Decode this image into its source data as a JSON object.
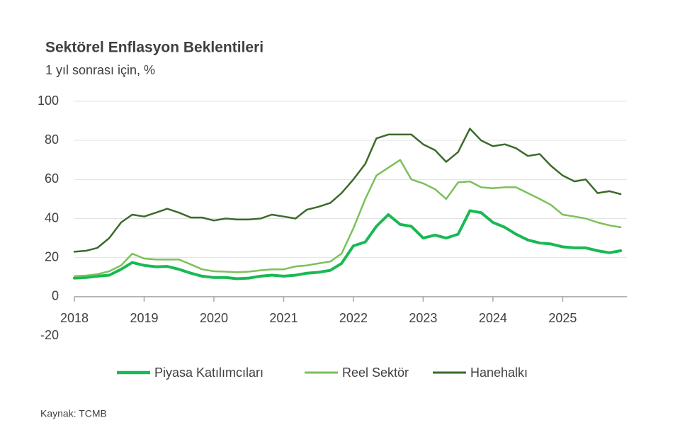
{
  "chart_data": {
    "type": "line",
    "title": "Sektörel Enflasyon Beklentileri",
    "subtitle": "1 yıl sonrası için, %",
    "source": "Kaynak: TCMB",
    "x": [
      2018,
      2018.17,
      2018.33,
      2018.5,
      2018.67,
      2018.83,
      2019,
      2019.17,
      2019.33,
      2019.5,
      2019.67,
      2019.83,
      2020,
      2020.17,
      2020.33,
      2020.5,
      2020.67,
      2020.83,
      2021,
      2021.17,
      2021.33,
      2021.5,
      2021.67,
      2021.83,
      2022,
      2022.17,
      2022.33,
      2022.5,
      2022.67,
      2022.83,
      2023,
      2023.17,
      2023.33,
      2023.5,
      2023.67,
      2023.83,
      2024,
      2024.17,
      2024.33,
      2024.5,
      2024.67,
      2024.83,
      2025,
      2025.17,
      2025.33,
      2025.5,
      2025.67,
      2025.83
    ],
    "series": [
      {
        "name": "Piyasa Katılımcıları",
        "color": "#19b954",
        "width": 4,
        "values": [
          9.5,
          9.8,
          10.5,
          11,
          14,
          17.5,
          16,
          15.3,
          15.5,
          14,
          12,
          10.5,
          9.8,
          9.8,
          9.2,
          9.5,
          10.5,
          11,
          10.5,
          11,
          12,
          12.5,
          13.5,
          17,
          26,
          28,
          36,
          42,
          37,
          36,
          30,
          31.5,
          30,
          32,
          44,
          43,
          38,
          35.5,
          32,
          29,
          27.5,
          27,
          25.5,
          25,
          25,
          23.5,
          22.5,
          23.5
        ]
      },
      {
        "name": "Reel Sektör",
        "color": "#7cc05a",
        "width": 2.5,
        "values": [
          10.5,
          10.8,
          11.5,
          13,
          16,
          22,
          19.5,
          19,
          19,
          19,
          16.5,
          14,
          13,
          12.8,
          12.5,
          12.8,
          13.5,
          14,
          14,
          15.5,
          16,
          17,
          18,
          22,
          35,
          50,
          62,
          66,
          70,
          60,
          58,
          55,
          50,
          58.5,
          59,
          56,
          55.5,
          56,
          56,
          53,
          50,
          47,
          42,
          41,
          40,
          38,
          36.5,
          35.5
        ]
      },
      {
        "name": "Hanehalkı",
        "color": "#3b6b2b",
        "width": 2.5,
        "values": [
          23,
          23.5,
          25,
          30,
          38,
          42,
          41,
          43,
          45,
          43,
          40.5,
          40.5,
          39,
          40,
          39.5,
          39.5,
          40,
          42,
          41,
          40,
          44.5,
          46,
          48,
          53,
          60,
          68,
          81,
          83,
          83,
          83,
          78,
          75,
          69,
          74,
          86,
          80,
          77,
          78,
          76,
          72,
          73,
          67,
          62,
          59,
          60,
          53,
          54,
          52.5
        ]
      }
    ],
    "xlim": [
      2018,
      2025.92
    ],
    "xticks": [
      2018,
      2019,
      2020,
      2021,
      2022,
      2023,
      2024,
      2025
    ],
    "ylim": [
      -20,
      100
    ],
    "yticks": [
      -20,
      0,
      20,
      40,
      60,
      80,
      100
    ],
    "grid": true
  }
}
